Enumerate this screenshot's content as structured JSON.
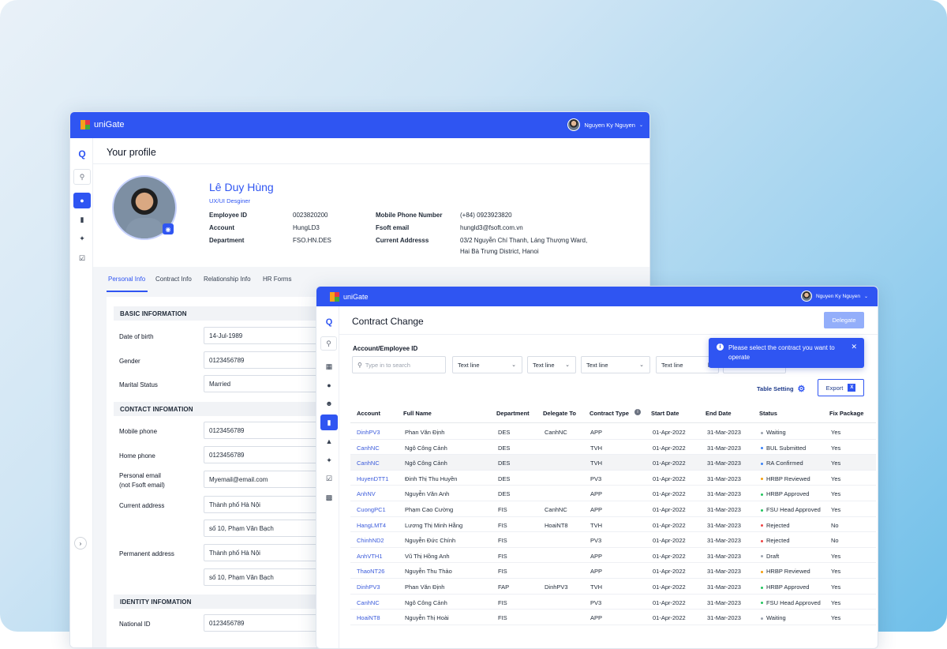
{
  "app": {
    "name": "uniGate",
    "user": "Nguyen Ky Nguyen"
  },
  "profile": {
    "page_title": "Your profile",
    "name": "Lê Duy Hùng",
    "role": "UX/UI Desginer",
    "info": [
      {
        "label": "Employee ID",
        "value": "0023820200"
      },
      {
        "label": "Account",
        "value": "HungLD3"
      },
      {
        "label": "Department",
        "value": "FSO.HN.DES"
      }
    ],
    "info2": [
      {
        "label": "Mobile Phone Number",
        "value": "(+84) 0923923820"
      },
      {
        "label": "Fsoft email",
        "value": "hungld3@fsoft.com.vn"
      },
      {
        "label": "Current Addresss",
        "value": "03/2 Nguyễn Chí Thanh, Láng Thượng Ward,",
        "value2": "Hai Bà Trưng District, Hanoi"
      }
    ],
    "tabs": [
      "Personal Info",
      "Contract Info",
      "Relationship Info",
      "HR Forms"
    ],
    "sections": {
      "basic": "BASIC INFORMATION",
      "contact": "CONTACT INFOMATION",
      "identity": "IDENTITY INFOMATION"
    },
    "fields": {
      "dob_label": "Date of birth",
      "dob": "14-Jul-1989",
      "gender_label": "Gender",
      "gender": "0123456789",
      "marital_label": "Marital Status",
      "marital": "Married",
      "mobile_label": "Mobile phone",
      "mobile": "0123456789",
      "home_label": "Home phone",
      "home": "0123456789",
      "pemail_label": "Personal email",
      "pemail_label2": "(not Fsoft email)",
      "pemail": "Myemail@email.com",
      "cur_label": "Current address",
      "cur1": "Thành phố Hà Nội",
      "cur2": "số 10, Phạm Văn Bạch",
      "perm_label": "Permanent address",
      "perm1": "Thành phố Hà Nội",
      "perm2": "số 10, Phạm Văn Bạch",
      "nid_label": "National ID",
      "nid": "0123456789"
    }
  },
  "contract": {
    "page_title": "Contract Change",
    "delegate_btn": "Delegate",
    "filter_label": "Account/Employee ID",
    "search_placeholder": "Type in to search",
    "selects": [
      "Text line",
      "Text line",
      "Text line",
      "Text line"
    ],
    "toast": "Please select the contract you want to operate",
    "table_setting": "Table Setting",
    "export": "Export",
    "columns": [
      "Account",
      "Full Name",
      "Department",
      "Delegate To",
      "Contract Type",
      "Start Date",
      "End Date",
      "Status",
      "Fix Package"
    ],
    "rows": [
      [
        "DinhPV3",
        "Phan Văn Định",
        "DES",
        "CanhNC",
        "APP",
        "01-Apr-2022",
        "31-Mar-2023",
        "Waiting",
        "Yes",
        "#9ca3af"
      ],
      [
        "CanhNC",
        "Ngô Công Cảnh",
        "DES",
        "",
        "TVH",
        "01-Apr-2022",
        "31-Mar-2023",
        "BUL Submitted",
        "Yes",
        "#3b82f6"
      ],
      [
        "CanhNC",
        "Ngô Công Cảnh",
        "DES",
        "",
        "TVH",
        "01-Apr-2022",
        "31-Mar-2023",
        "RA Confirmed",
        "Yes",
        "#3b82f6"
      ],
      [
        "HuyenDTT1",
        "Đinh Thị Thu Huyền",
        "DES",
        "",
        "PV3",
        "01-Apr-2022",
        "31-Mar-2023",
        "HRBP Reviewed",
        "Yes",
        "#f59e0b"
      ],
      [
        "AnhNV",
        "Nguyễn Văn Anh",
        "DES",
        "",
        "APP",
        "01-Apr-2022",
        "31-Mar-2023",
        "HRBP Approved",
        "Yes",
        "#22c55e"
      ],
      [
        "CuongPC1",
        "Phạm Cao Cường",
        "FIS",
        "CanhNC",
        "APP",
        "01-Apr-2022",
        "31-Mar-2023",
        "FSU Head Approved",
        "Yes",
        "#22c55e"
      ],
      [
        "HangLMT4",
        "Lương Thị Minh Hằng",
        "FIS",
        "HoaiNT8",
        "TVH",
        "01-Apr-2022",
        "31-Mar-2023",
        "Rejected",
        "No",
        "#ef4444"
      ],
      [
        "ChinhND2",
        "Nguyễn Đức Chính",
        "FIS",
        "",
        "PV3",
        "01-Apr-2022",
        "31-Mar-2023",
        "Rejected",
        "No",
        "#ef4444"
      ],
      [
        "AnhVTH1",
        "Vũ Thị Hồng Anh",
        "FIS",
        "",
        "APP",
        "01-Apr-2022",
        "31-Mar-2023",
        "Draft",
        "Yes",
        "#9ca3af"
      ],
      [
        "ThaoNT26",
        "Nguyễn Thu Thảo",
        "FIS",
        "",
        "APP",
        "01-Apr-2022",
        "31-Mar-2023",
        "HRBP Reviewed",
        "Yes",
        "#f59e0b"
      ],
      [
        "DinhPV3",
        "Phan Văn Định",
        "FAP",
        "DinhPV3",
        "TVH",
        "01-Apr-2022",
        "31-Mar-2023",
        "HRBP Approved",
        "Yes",
        "#22c55e"
      ],
      [
        "CanhNC",
        "Ngô Công Cảnh",
        "FIS",
        "",
        "PV3",
        "01-Apr-2022",
        "31-Mar-2023",
        "FSU Head Approved",
        "Yes",
        "#22c55e"
      ],
      [
        "HoaiNT8",
        "Nguyễn Thị Hoài",
        "FIS",
        "",
        "APP",
        "01-Apr-2022",
        "31-Mar-2023",
        "Waiting",
        "Yes",
        "#9ca3af"
      ]
    ]
  },
  "colors": {
    "primary": "#2f55f2",
    "link": "#3b5bdb"
  }
}
